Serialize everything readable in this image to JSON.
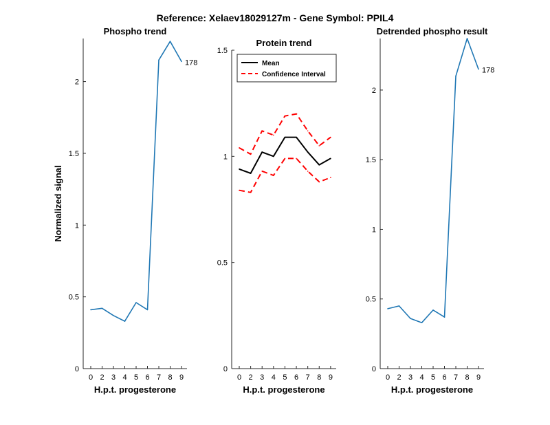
{
  "figure_title": "Reference:  Xelaev18029127m - Gene Symbol:  PPIL4",
  "chart_data": [
    {
      "type": "line",
      "title": "Phospho trend",
      "xlabel": "H.p.t. progesterone",
      "ylabel": "Normalized signal",
      "categories": [
        "0",
        "2",
        "3",
        "4",
        "5",
        "6",
        "7",
        "8",
        "9"
      ],
      "ylim": [
        0,
        2.3
      ],
      "yticks": [
        0,
        0.5,
        1,
        1.5,
        2
      ],
      "ytick_labels": [
        "0",
        "0.5",
        "1",
        "1.5",
        "2"
      ],
      "grid": false,
      "series": [
        {
          "name": "",
          "color": "#1f77b4",
          "values": [
            0.41,
            0.42,
            0.37,
            0.33,
            0.46,
            0.41,
            2.15,
            2.28,
            2.14
          ]
        }
      ],
      "end_label": "178"
    },
    {
      "type": "line",
      "title": "Protein trend",
      "xlabel": "H.p.t. progesterone",
      "ylabel": "",
      "categories": [
        "0",
        "2",
        "3",
        "4",
        "5",
        "6",
        "7",
        "8",
        "9"
      ],
      "ylim": [
        0,
        1.5
      ],
      "yticks": [
        0,
        0.5,
        1,
        1.5
      ],
      "ytick_labels": [
        "0",
        "0.5",
        "1",
        "1.5"
      ],
      "grid": false,
      "legend_position": "top-left",
      "series": [
        {
          "name": "Mean",
          "color": "#000000",
          "style": "solid",
          "values": [
            0.94,
            0.92,
            1.02,
            1.0,
            1.09,
            1.09,
            1.02,
            0.96,
            0.99
          ]
        },
        {
          "name": "Confidence Interval",
          "color": "#ff0000",
          "style": "dashed",
          "values": [
            1.04,
            1.01,
            1.12,
            1.1,
            1.19,
            1.2,
            1.12,
            1.05,
            1.09
          ]
        },
        {
          "name": "",
          "color": "#ff0000",
          "style": "dashed",
          "values": [
            0.84,
            0.83,
            0.93,
            0.91,
            0.99,
            0.99,
            0.93,
            0.88,
            0.9
          ]
        }
      ]
    },
    {
      "type": "line",
      "title": "Detrended phospho result",
      "xlabel": "H.p.t. progesterone",
      "ylabel": "",
      "categories": [
        "0",
        "2",
        "3",
        "4",
        "5",
        "6",
        "7",
        "8",
        "9"
      ],
      "ylim": [
        0,
        2.37
      ],
      "yticks": [
        0,
        0.5,
        1,
        1.5,
        2
      ],
      "ytick_labels": [
        "0",
        "0.5",
        "1",
        "1.5",
        "2"
      ],
      "grid": false,
      "series": [
        {
          "name": "",
          "color": "#1f77b4",
          "values": [
            0.43,
            0.45,
            0.36,
            0.33,
            0.42,
            0.37,
            2.1,
            2.37,
            2.15
          ]
        }
      ],
      "end_label": "178"
    }
  ]
}
